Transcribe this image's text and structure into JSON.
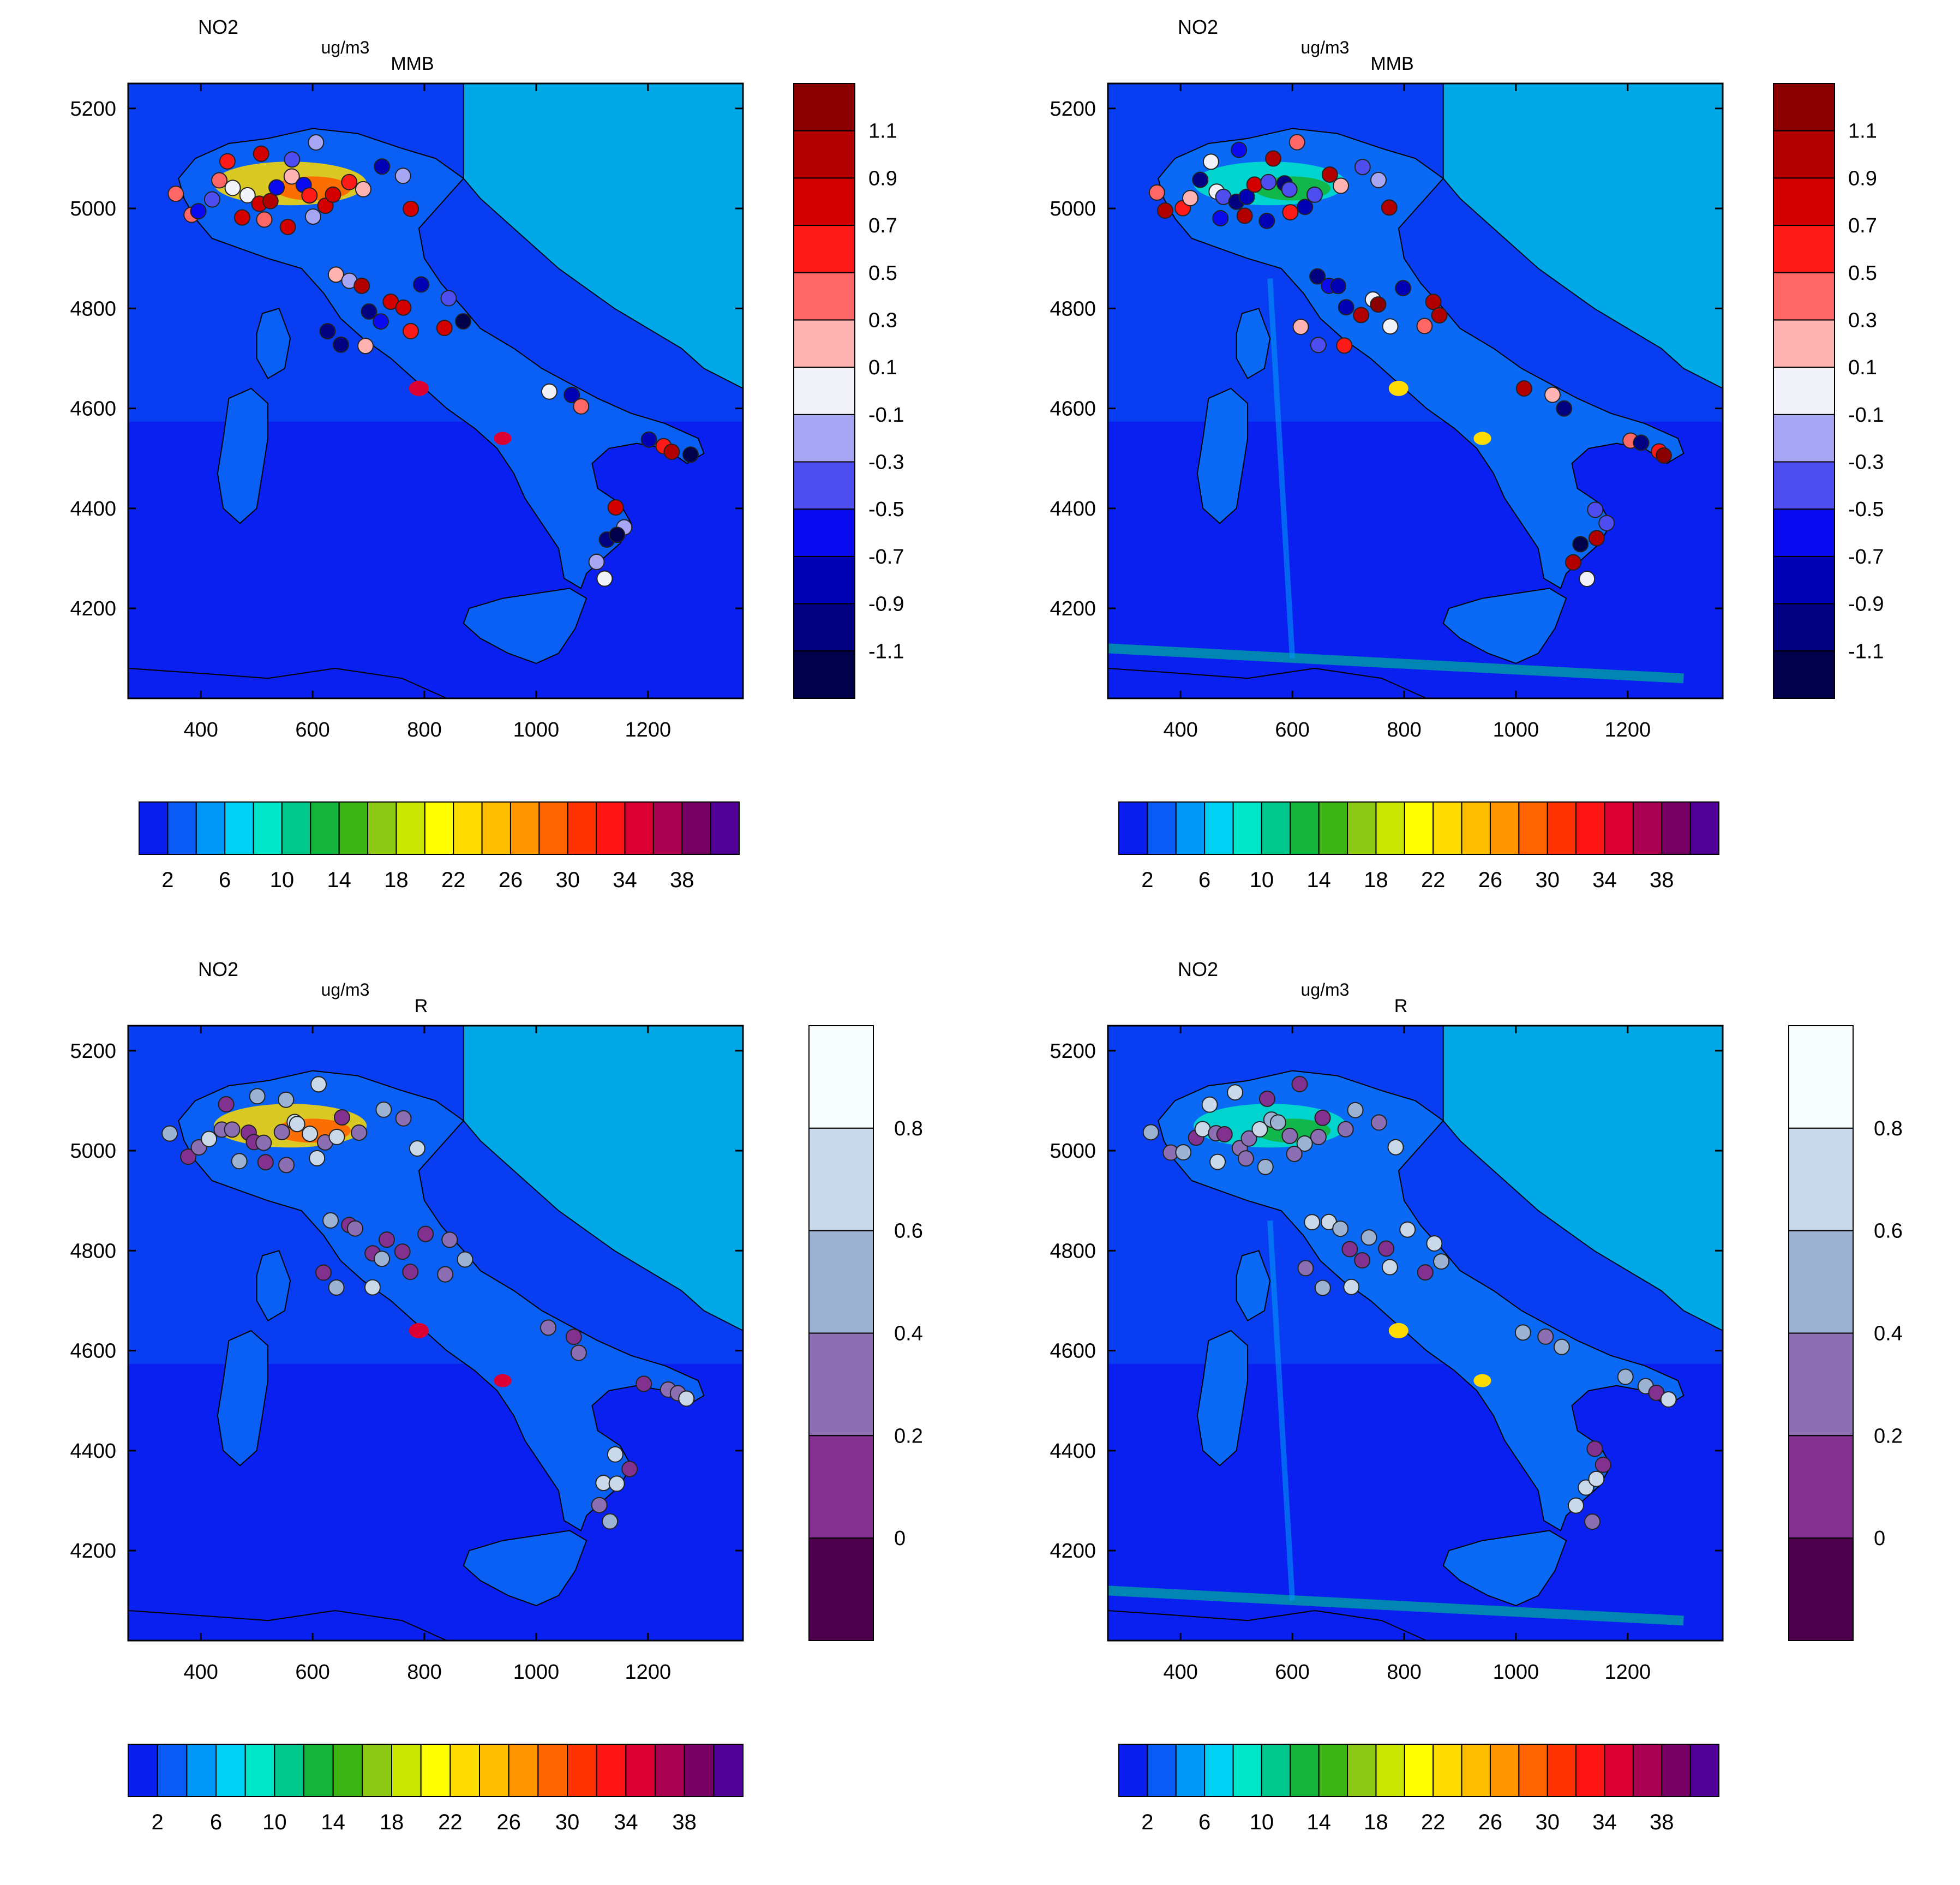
{
  "panels": [
    {
      "title": "NO2",
      "units": "ug/m3",
      "overlay_title": "MMB",
      "overlay_kind": "mmb",
      "dot_palette": "mmb"
    },
    {
      "title": "NO2",
      "units": "ug/m3",
      "overlay_title": "MMB",
      "overlay_kind": "mmb",
      "dot_palette": "mmb"
    },
    {
      "title": "NO2",
      "units": "ug/m3",
      "overlay_title": "R",
      "overlay_kind": "r",
      "dot_palette": "r"
    },
    {
      "title": "NO2",
      "units": "ug/m3",
      "overlay_title": "R",
      "overlay_kind": "r",
      "dot_palette": "r"
    }
  ],
  "map_axes": {
    "x_ticks": [
      "400",
      "600",
      "800",
      "1000",
      "1200"
    ],
    "y_ticks": [
      "5200",
      "5000",
      "4800",
      "4600",
      "4400",
      "4200"
    ],
    "x_range": [
      270,
      1370
    ],
    "y_range": [
      4020,
      5250
    ]
  },
  "concentration_bar": {
    "labels": [
      "2",
      "6",
      "10",
      "14",
      "18",
      "22",
      "26",
      "30",
      "34",
      "38"
    ],
    "colors": [
      "#0a1ef0",
      "#0a5af5",
      "#0096f5",
      "#00d2f5",
      "#00e6c8",
      "#00c88c",
      "#14b43c",
      "#3cb414",
      "#8cc814",
      "#c8e600",
      "#ffff00",
      "#ffdc00",
      "#ffbe00",
      "#ff9600",
      "#ff6400",
      "#ff3200",
      "#ff1414",
      "#dc0032",
      "#aa0050",
      "#780064",
      "#500096"
    ]
  },
  "mmb_legend": {
    "labels": [
      "1.1",
      "0.9",
      "0.7",
      "0.5",
      "0.3",
      "0.1",
      "-0.1",
      "-0.3",
      "-0.5",
      "-0.7",
      "-0.9",
      "-1.1"
    ],
    "colors": [
      "#8b0000",
      "#b20000",
      "#d40000",
      "#ff1a1a",
      "#ff6666",
      "#ffb3b3",
      "#f2f2fa",
      "#a6a6f5",
      "#4d4df0",
      "#0a0af0",
      "#0000b4",
      "#000080",
      "#00004b"
    ]
  },
  "r_legend": {
    "labels": [
      "0.8",
      "0.6",
      "0.4",
      "0.2",
      "0"
    ],
    "colors": [
      "#f7fcfd",
      "#c9d9e9",
      "#9bb2d3",
      "#8c6fb2",
      "#83318f",
      "#4d004b"
    ]
  }
}
